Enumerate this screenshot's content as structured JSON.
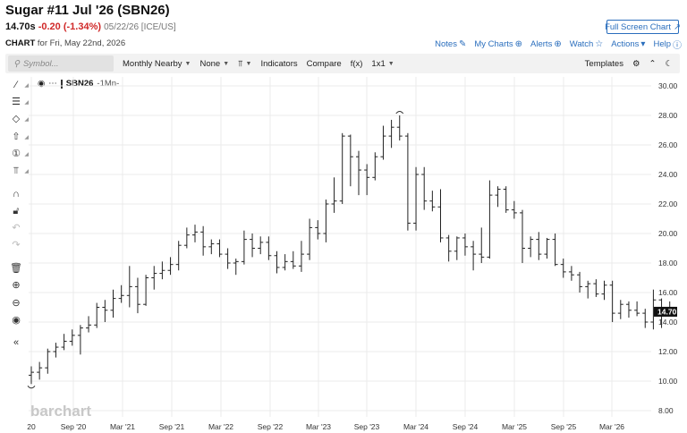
{
  "header": {
    "title": "Sugar #11 Jul '26 (SBN26)",
    "last": "14.70s",
    "change": "-0.20 (-1.34%)",
    "meta": "05/22/26 [ICE/US]",
    "fullscreen_label": "Full Screen Chart",
    "chart_label": "CHART",
    "chart_date": "for Fri, May 22nd, 2026"
  },
  "links": {
    "notes": "Notes",
    "my_charts": "My Charts",
    "alerts": "Alerts",
    "watch": "Watch",
    "actions": "Actions",
    "help": "Help"
  },
  "toolbar": {
    "search_placeholder": "Symbol...",
    "period": "Monthly Nearby",
    "overlay": "None",
    "indicators": "Indicators",
    "compare": "Compare",
    "fx": "f(x)",
    "layout": "1x1",
    "templates": "Templates"
  },
  "legend": {
    "symbol": "SBN26",
    "period": "-1Mn-"
  },
  "watermark": "barchart",
  "last_price_label": "14.70",
  "colors": {
    "link": "#2a6ebd",
    "negative": "#d02828",
    "price_badge": "#111111",
    "bars": "#222222"
  },
  "chart_data": {
    "type": "ohlc",
    "x_tick_labels": [
      "20",
      "Sep '20",
      "Mar '21",
      "Sep '21",
      "Mar '22",
      "Sep '22",
      "Mar '23",
      "Sep '23",
      "Mar '24",
      "Sep '24",
      "Mar '25",
      "Sep '25",
      "Mar '26"
    ],
    "y_tick_labels": [
      "8.00",
      "10.00",
      "12.00",
      "14.00",
      "16.00",
      "18.00",
      "20.00",
      "22.00",
      "24.00",
      "26.00",
      "28.00",
      "30.00"
    ],
    "ylim": [
      8,
      30
    ],
    "grid": true,
    "last_price": 14.7,
    "bars": [
      {
        "o": 10.4,
        "h": 11.0,
        "l": 9.8,
        "c": 10.6
      },
      {
        "o": 10.6,
        "h": 11.3,
        "l": 10.1,
        "c": 10.9
      },
      {
        "o": 10.9,
        "h": 12.2,
        "l": 10.5,
        "c": 12.0
      },
      {
        "o": 12.0,
        "h": 12.6,
        "l": 11.6,
        "c": 12.3
      },
      {
        "o": 12.3,
        "h": 13.2,
        "l": 12.1,
        "c": 12.7
      },
      {
        "o": 12.7,
        "h": 13.5,
        "l": 12.4,
        "c": 13.1
      },
      {
        "o": 13.1,
        "h": 13.8,
        "l": 11.8,
        "c": 13.6
      },
      {
        "o": 13.6,
        "h": 14.4,
        "l": 13.3,
        "c": 13.8
      },
      {
        "o": 13.8,
        "h": 15.3,
        "l": 13.6,
        "c": 15.0
      },
      {
        "o": 15.0,
        "h": 15.5,
        "l": 14.0,
        "c": 14.8
      },
      {
        "o": 14.8,
        "h": 16.2,
        "l": 14.3,
        "c": 15.6
      },
      {
        "o": 15.6,
        "h": 16.5,
        "l": 15.3,
        "c": 15.8
      },
      {
        "o": 15.8,
        "h": 17.8,
        "l": 15.0,
        "c": 16.4
      },
      {
        "o": 16.4,
        "h": 17.0,
        "l": 14.6,
        "c": 15.2
      },
      {
        "o": 15.2,
        "h": 17.2,
        "l": 15.1,
        "c": 17.0
      },
      {
        "o": 17.0,
        "h": 17.8,
        "l": 16.2,
        "c": 17.3
      },
      {
        "o": 17.3,
        "h": 18.1,
        "l": 16.9,
        "c": 17.5
      },
      {
        "o": 17.5,
        "h": 18.4,
        "l": 17.2,
        "c": 17.9
      },
      {
        "o": 17.9,
        "h": 19.5,
        "l": 17.5,
        "c": 19.2
      },
      {
        "o": 19.2,
        "h": 20.4,
        "l": 19.0,
        "c": 19.9
      },
      {
        "o": 19.9,
        "h": 20.6,
        "l": 19.4,
        "c": 20.1
      },
      {
        "o": 20.1,
        "h": 20.5,
        "l": 18.5,
        "c": 19.1
      },
      {
        "o": 19.1,
        "h": 19.6,
        "l": 18.6,
        "c": 19.3
      },
      {
        "o": 19.3,
        "h": 19.6,
        "l": 18.4,
        "c": 18.6
      },
      {
        "o": 18.6,
        "h": 19.0,
        "l": 17.6,
        "c": 18.0
      },
      {
        "o": 18.0,
        "h": 18.3,
        "l": 17.2,
        "c": 18.1
      },
      {
        "o": 18.1,
        "h": 20.2,
        "l": 17.9,
        "c": 19.6
      },
      {
        "o": 19.6,
        "h": 20.0,
        "l": 18.4,
        "c": 19.0
      },
      {
        "o": 19.0,
        "h": 19.8,
        "l": 18.6,
        "c": 19.4
      },
      {
        "o": 19.4,
        "h": 19.8,
        "l": 18.2,
        "c": 18.5
      },
      {
        "o": 18.5,
        "h": 18.8,
        "l": 17.3,
        "c": 17.7
      },
      {
        "o": 17.7,
        "h": 18.6,
        "l": 17.5,
        "c": 18.1
      },
      {
        "o": 18.1,
        "h": 18.8,
        "l": 17.6,
        "c": 17.8
      },
      {
        "o": 17.8,
        "h": 19.5,
        "l": 17.4,
        "c": 18.6
      },
      {
        "o": 18.6,
        "h": 21.0,
        "l": 18.2,
        "c": 20.4
      },
      {
        "o": 20.4,
        "h": 20.9,
        "l": 19.6,
        "c": 20.0
      },
      {
        "o": 20.0,
        "h": 22.3,
        "l": 19.4,
        "c": 22.0
      },
      {
        "o": 22.0,
        "h": 23.8,
        "l": 21.4,
        "c": 22.2
      },
      {
        "o": 22.2,
        "h": 26.8,
        "l": 22.0,
        "c": 26.6
      },
      {
        "o": 26.6,
        "h": 26.7,
        "l": 23.2,
        "c": 25.2
      },
      {
        "o": 25.2,
        "h": 25.6,
        "l": 22.6,
        "c": 24.3
      },
      {
        "o": 24.3,
        "h": 24.7,
        "l": 22.6,
        "c": 23.8
      },
      {
        "o": 23.8,
        "h": 25.5,
        "l": 23.6,
        "c": 25.2
      },
      {
        "o": 25.2,
        "h": 27.3,
        "l": 25.0,
        "c": 26.6
      },
      {
        "o": 26.6,
        "h": 27.7,
        "l": 25.8,
        "c": 27.2
      },
      {
        "o": 27.2,
        "h": 28.0,
        "l": 26.3,
        "c": 26.6
      },
      {
        "o": 26.6,
        "h": 26.8,
        "l": 20.2,
        "c": 20.7
      },
      {
        "o": 20.7,
        "h": 24.5,
        "l": 20.2,
        "c": 24.0
      },
      {
        "o": 24.0,
        "h": 24.5,
        "l": 21.6,
        "c": 22.2
      },
      {
        "o": 22.2,
        "h": 22.9,
        "l": 21.5,
        "c": 21.8
      },
      {
        "o": 21.8,
        "h": 23.0,
        "l": 19.4,
        "c": 19.7
      },
      {
        "o": 19.7,
        "h": 19.9,
        "l": 18.1,
        "c": 18.8
      },
      {
        "o": 18.8,
        "h": 19.8,
        "l": 18.2,
        "c": 19.7
      },
      {
        "o": 19.7,
        "h": 20.0,
        "l": 18.5,
        "c": 19.1
      },
      {
        "o": 19.1,
        "h": 19.5,
        "l": 17.5,
        "c": 18.6
      },
      {
        "o": 18.6,
        "h": 20.4,
        "l": 18.0,
        "c": 18.4
      },
      {
        "o": 18.4,
        "h": 23.6,
        "l": 18.3,
        "c": 22.6
      },
      {
        "o": 22.6,
        "h": 23.2,
        "l": 21.8,
        "c": 23.0
      },
      {
        "o": 23.0,
        "h": 23.2,
        "l": 21.4,
        "c": 21.6
      },
      {
        "o": 21.6,
        "h": 22.2,
        "l": 21.0,
        "c": 21.4
      },
      {
        "o": 21.4,
        "h": 21.6,
        "l": 18.0,
        "c": 19.0
      },
      {
        "o": 19.0,
        "h": 19.8,
        "l": 18.4,
        "c": 19.6
      },
      {
        "o": 19.6,
        "h": 20.1,
        "l": 18.2,
        "c": 18.6
      },
      {
        "o": 18.6,
        "h": 19.7,
        "l": 18.3,
        "c": 19.6
      },
      {
        "o": 19.6,
        "h": 20.0,
        "l": 17.8,
        "c": 17.9
      },
      {
        "o": 17.9,
        "h": 18.3,
        "l": 17.0,
        "c": 17.4
      },
      {
        "o": 17.4,
        "h": 17.8,
        "l": 16.8,
        "c": 17.2
      },
      {
        "o": 17.2,
        "h": 17.4,
        "l": 16.0,
        "c": 16.4
      },
      {
        "o": 16.4,
        "h": 16.8,
        "l": 15.6,
        "c": 16.6
      },
      {
        "o": 16.6,
        "h": 16.9,
        "l": 15.7,
        "c": 15.9
      },
      {
        "o": 15.9,
        "h": 16.8,
        "l": 15.5,
        "c": 16.5
      },
      {
        "o": 16.5,
        "h": 16.8,
        "l": 14.0,
        "c": 14.6
      },
      {
        "o": 14.6,
        "h": 15.5,
        "l": 14.2,
        "c": 15.2
      },
      {
        "o": 15.2,
        "h": 15.4,
        "l": 14.3,
        "c": 14.8
      },
      {
        "o": 14.8,
        "h": 15.4,
        "l": 14.4,
        "c": 14.6
      },
      {
        "o": 14.6,
        "h": 14.9,
        "l": 13.6,
        "c": 14.0
      },
      {
        "o": 14.0,
        "h": 16.2,
        "l": 13.5,
        "c": 15.5
      },
      {
        "o": 15.5,
        "h": 15.6,
        "l": 13.6,
        "c": 14.6
      },
      {
        "o": 14.6,
        "h": 15.4,
        "l": 14.5,
        "c": 14.7
      }
    ]
  }
}
